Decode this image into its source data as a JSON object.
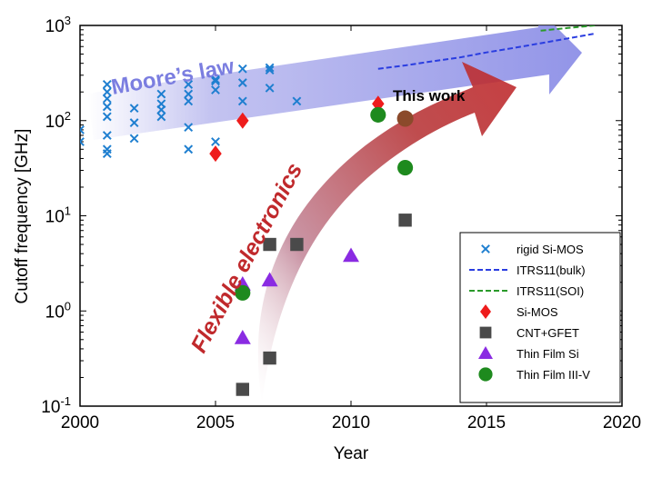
{
  "chart_data": {
    "type": "scatter",
    "title": "",
    "xlabel": "Year",
    "ylabel": "Cutoff frequency [GHz]",
    "xlim": [
      2000,
      2020
    ],
    "ylim": [
      0.1,
      1000
    ],
    "yscale": "log",
    "x_ticks": [
      "2000",
      "2005",
      "2010",
      "2015",
      "2020"
    ],
    "y_ticks": [
      {
        "base": "10",
        "exp": "-1"
      },
      {
        "base": "10",
        "exp": "0"
      },
      {
        "base": "10",
        "exp": "1"
      },
      {
        "base": "10",
        "exp": "2"
      },
      {
        "base": "10",
        "exp": "3"
      }
    ],
    "legend_position": "lower-right",
    "series": [
      {
        "name": "rigid Si-MOS",
        "marker": "x",
        "color": "#1f7fd0",
        "points": [
          [
            2000,
            60
          ],
          [
            2000,
            80
          ],
          [
            2001,
            45
          ],
          [
            2001,
            50
          ],
          [
            2001,
            70
          ],
          [
            2001,
            110
          ],
          [
            2001,
            140
          ],
          [
            2001,
            170
          ],
          [
            2001,
            200
          ],
          [
            2001,
            240
          ],
          [
            2002,
            65
          ],
          [
            2002,
            95
          ],
          [
            2002,
            135
          ],
          [
            2003,
            110
          ],
          [
            2003,
            130
          ],
          [
            2003,
            150
          ],
          [
            2003,
            190
          ],
          [
            2004,
            50
          ],
          [
            2004,
            85
          ],
          [
            2004,
            160
          ],
          [
            2004,
            190
          ],
          [
            2004,
            240
          ],
          [
            2005,
            60
          ],
          [
            2005,
            210
          ],
          [
            2005,
            260
          ],
          [
            2005,
            270
          ],
          [
            2006,
            160
          ],
          [
            2006,
            250
          ],
          [
            2006,
            350
          ],
          [
            2007,
            220
          ],
          [
            2007,
            340
          ],
          [
            2007,
            360
          ],
          [
            2008,
            160
          ]
        ]
      },
      {
        "name": "ITRS11(bulk)",
        "marker": "line",
        "color": "#2a3de0",
        "dash": "6,3",
        "points": [
          [
            2011,
            350
          ],
          [
            2012,
            380
          ],
          [
            2013,
            420
          ],
          [
            2014,
            460
          ],
          [
            2015,
            520
          ],
          [
            2016,
            580
          ],
          [
            2017,
            650
          ],
          [
            2018,
            730
          ],
          [
            2019,
            820
          ]
        ]
      },
      {
        "name": "ITRS11(SOI)",
        "marker": "line",
        "color": "#2a9a2a",
        "dash": "6,3",
        "points": [
          [
            2017,
            880
          ],
          [
            2018,
            940
          ],
          [
            2019,
            1000
          ]
        ]
      },
      {
        "name": "Si-MOS",
        "marker": "diamond",
        "color": "#ee1c1c",
        "points": [
          [
            2005,
            45
          ],
          [
            2006,
            100
          ],
          [
            2011,
            150
          ]
        ]
      },
      {
        "name": "CNT+GFET",
        "marker": "square",
        "color": "#4a4a4a",
        "points": [
          [
            2006,
            0.15
          ],
          [
            2007,
            0.32
          ],
          [
            2007,
            5
          ],
          [
            2008,
            5
          ],
          [
            2012,
            9
          ]
        ]
      },
      {
        "name": "Thin Film Si",
        "marker": "triangle",
        "color": "#8a2be2",
        "points": [
          [
            2006,
            0.52
          ],
          [
            2006,
            1.9
          ],
          [
            2007,
            2.1
          ],
          [
            2010,
            3.8
          ]
        ]
      },
      {
        "name": "Thin Film III-V",
        "marker": "circle",
        "color": "#1e8a1e",
        "points": [
          [
            2006,
            1.55
          ],
          [
            2011,
            115
          ],
          [
            2012,
            32
          ]
        ]
      }
    ],
    "this_work_point": [
      2012,
      105
    ],
    "annotations": {
      "moores_law": "Moore’s law",
      "flexible": "Flexible electronics",
      "this_work": "This work"
    }
  },
  "colors": {
    "moore_arrow": "#8d8de8",
    "flex_arrow": "#c0292c"
  }
}
